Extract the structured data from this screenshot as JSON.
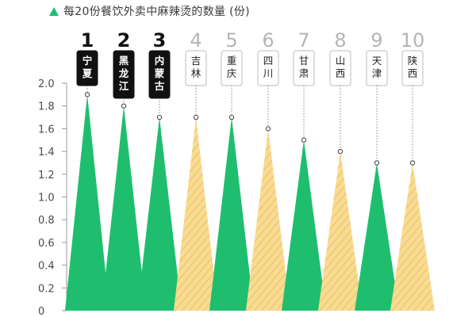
{
  "chart_data": {
    "type": "bar",
    "title": "每20份餐饮外卖中麻辣烫的数量 (份)",
    "categories": [
      "宁夏",
      "黑龙江",
      "内蒙古",
      "吉林",
      "重庆",
      "四川",
      "甘肃",
      "山西",
      "天津",
      "陕西"
    ],
    "ranks": [
      "1",
      "2",
      "3",
      "4",
      "5",
      "6",
      "7",
      "8",
      "9",
      "10"
    ],
    "values": [
      1.9,
      1.8,
      1.7,
      1.7,
      1.7,
      1.6,
      1.5,
      1.4,
      1.3,
      1.3
    ],
    "highlighted": [
      true,
      true,
      true,
      false,
      false,
      false,
      false,
      false,
      false,
      false
    ],
    "ylim": [
      0,
      2.0
    ],
    "yticks": [
      "0",
      "0.2",
      "0.4",
      "0.6",
      "0.8",
      "1.0",
      "1.2",
      "1.4",
      "1.6",
      "1.8",
      "2.0"
    ],
    "xlabel": "",
    "ylabel": "",
    "grid": false,
    "colors": {
      "green": "#1fbe6f",
      "yellow": "#f8dc93",
      "yellow_stripe": "#efc56c",
      "highlight_label_bg": "#111111",
      "highlight_label_text": "#ffffff",
      "label_text": "#222222",
      "rank_highlight": "#111111",
      "rank_normal": "#b5b5b5",
      "axis": "#9a9a9a",
      "dot": "#555555"
    }
  }
}
